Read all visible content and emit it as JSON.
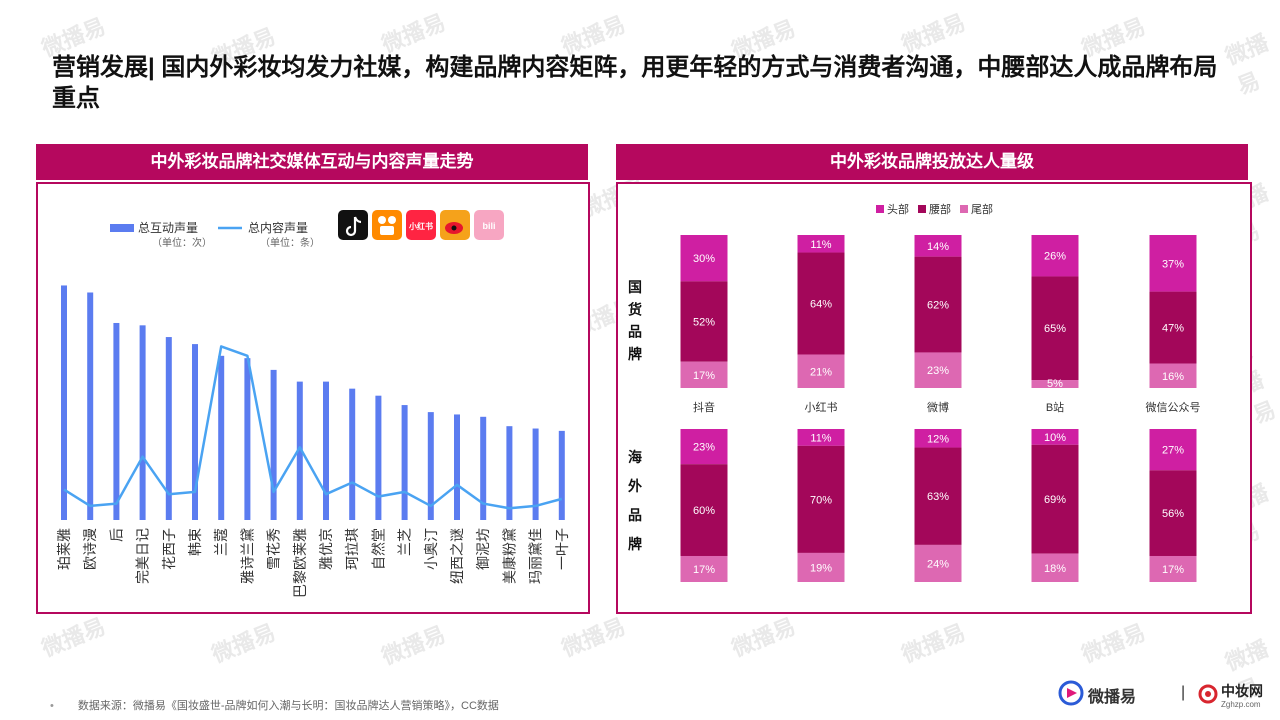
{
  "page": {
    "title": "营销发展| 国内外彩妆均发力社媒，构建品牌内容矩阵，用更年轻的方式与消费者沟通，中腰部达人成品牌布局重点",
    "source": "数据来源：微播易《国妆盛世-品牌如何入潮与长明：国妆品牌达人营销策略》，CC数据",
    "source_bullet": "•",
    "logo_left": "微播易",
    "logo_sep": "|",
    "logo_right": "中妆网",
    "logo_right_sub": "Zghzp.com",
    "watermark": "微播易",
    "accent_color": "#b5085e"
  },
  "left_panel": {
    "header": "中外彩妆品牌社交媒体互动与内容声量走势",
    "platform_icons": [
      "douyin-icon",
      "kuaishou-icon",
      "xiaohongshu-icon",
      "weibo-icon",
      "bilibili-icon"
    ],
    "platform_icon_text": {
      "xiaohongshu": "小红书",
      "bilibili": "bili"
    }
  },
  "right_panel": {
    "header": "中外彩妆品牌投放达人量级",
    "group_labels": [
      "国货品牌",
      "海外品牌"
    ]
  },
  "chart_data": [
    {
      "type": "bar",
      "categories": [
        "珀莱雅",
        "欧诗漫",
        "后",
        "完美日记",
        "花西子",
        "韩束",
        "兰蔻",
        "雅诗兰黛",
        "雪花秀",
        "巴黎欧莱雅",
        "雅优京",
        "珂拉琪",
        "自然堂",
        "兰芝",
        "小奥汀",
        "纽西之谜",
        "御泥坊",
        "美康粉黛",
        "玛丽黛佳",
        "一叶子"
      ],
      "series": [
        {
          "name": "总互动声量",
          "unit": "（单位：次）",
          "kind": "bar",
          "color": "#5b7cf0",
          "values": [
            100,
            97,
            84,
            83,
            78,
            75,
            70,
            69,
            64,
            59,
            59,
            56,
            53,
            49,
            46,
            45,
            44,
            40,
            39,
            38
          ]
        },
        {
          "name": "总内容声量",
          "unit": "（单位：条）",
          "kind": "line",
          "color": "#4aa3f2",
          "values": [
            13,
            6,
            7,
            27,
            11,
            12,
            74,
            70,
            12,
            31,
            11,
            16,
            10,
            12,
            6,
            15,
            7,
            5,
            6,
            9
          ]
        }
      ],
      "ylim": [
        0,
        110
      ],
      "grid": false,
      "legend": "top-left"
    },
    {
      "type": "bar",
      "subtype": "stacked-100",
      "legend": [
        "头部",
        "腰部",
        "尾部"
      ],
      "legend_position": "top",
      "platforms": [
        "抖音",
        "小红书",
        "微博",
        "B站",
        "微信公众号"
      ],
      "groups": [
        {
          "name": "国货品牌",
          "head": [
            30,
            11,
            14,
            26,
            37
          ],
          "waist": [
            52,
            64,
            62,
            65,
            47
          ],
          "tail": [
            17,
            21,
            23,
            5,
            16
          ]
        },
        {
          "name": "海外品牌",
          "head": [
            23,
            11,
            12,
            10,
            27
          ],
          "waist": [
            60,
            70,
            63,
            69,
            56
          ],
          "tail": [
            17,
            19,
            24,
            18,
            17
          ]
        }
      ],
      "colors": {
        "head": "#cf1fa2",
        "waist": "#a3075a",
        "tail": "#dd68b2"
      }
    }
  ]
}
